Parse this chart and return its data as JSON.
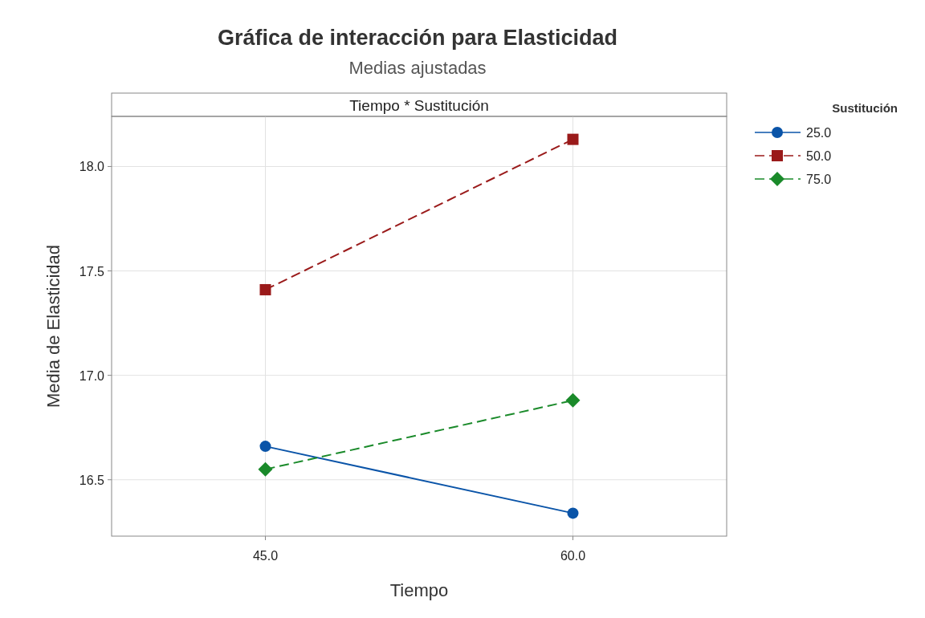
{
  "chart_data": {
    "type": "line",
    "title": "Gráfica de interacción para Elasticidad",
    "subtitle": "Medias ajustadas",
    "annotations": [
      "Tiempo * Sustitución"
    ],
    "xlabel": "Tiempo",
    "ylabel": "Media de Elasticidad",
    "legend_title": "Sustitución",
    "legend": "top right",
    "grid": true,
    "x": [
      45,
      60
    ],
    "xlim": [
      37.5,
      67.5
    ],
    "xticks": [
      {
        "value": 45,
        "label": "45.0"
      },
      {
        "value": 60,
        "label": "60.0"
      }
    ],
    "ylim": [
      16.23,
      18.24
    ],
    "yticks": [
      16.5,
      {
        "value": 17,
        "label": "17.0"
      },
      17.5,
      {
        "value": 18,
        "label": "18.0"
      }
    ],
    "series": [
      {
        "name": "25.0",
        "color": "#0a54a8",
        "values": [
          16.66,
          16.34
        ],
        "marker": "circle",
        "line_style": "solid"
      },
      {
        "name": "50.0",
        "color": "#9a1a1a",
        "values": [
          17.41,
          18.13
        ],
        "marker": "square",
        "line_style": "dashed"
      },
      {
        "name": "75.0",
        "color": "#1a8a2a",
        "values": [
          16.55,
          16.88
        ],
        "marker": "diamond",
        "line_style": "dashed"
      }
    ]
  }
}
